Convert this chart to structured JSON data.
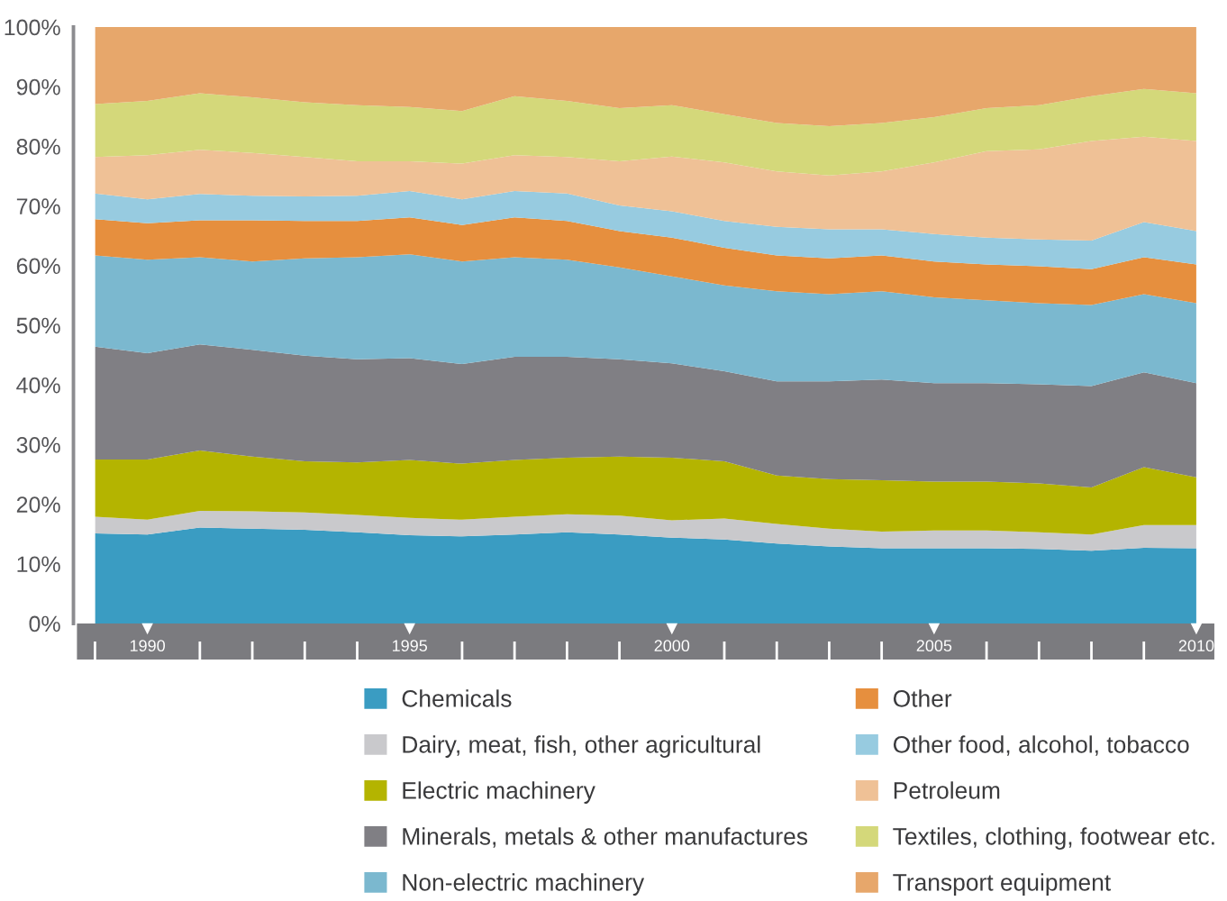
{
  "chart_data": {
    "type": "area",
    "stacked": true,
    "x": [
      1989,
      1990,
      1991,
      1992,
      1993,
      1994,
      1995,
      1996,
      1997,
      1998,
      1999,
      2000,
      2001,
      2002,
      2003,
      2004,
      2005,
      2006,
      2007,
      2008,
      2009,
      2010
    ],
    "xlim": [
      1989,
      2010
    ],
    "xticks": [
      {
        "value": 1989,
        "label": null
      },
      1990,
      {
        "value": 1991,
        "label": null
      },
      {
        "value": 1992,
        "label": null
      },
      {
        "value": 1993,
        "label": null
      },
      {
        "value": 1994,
        "label": null
      },
      1995,
      {
        "value": 1996,
        "label": null
      },
      {
        "value": 1997,
        "label": null
      },
      {
        "value": 1998,
        "label": null
      },
      {
        "value": 1999,
        "label": null
      },
      2000,
      {
        "value": 2001,
        "label": null
      },
      {
        "value": 2002,
        "label": null
      },
      {
        "value": 2003,
        "label": null
      },
      {
        "value": 2004,
        "label": null
      },
      2005,
      {
        "value": 2006,
        "label": null
      },
      {
        "value": 2007,
        "label": null
      },
      {
        "value": 2008,
        "label": null
      },
      {
        "value": 2009,
        "label": null
      },
      2010
    ],
    "ylim": [
      0,
      100
    ],
    "yticks": [
      {
        "value": 0,
        "label": "0%"
      },
      {
        "value": 10,
        "label": "10%"
      },
      {
        "value": 20,
        "label": "20%"
      },
      {
        "value": 30,
        "label": "30%"
      },
      {
        "value": 40,
        "label": "40%"
      },
      {
        "value": 50,
        "label": "50%"
      },
      {
        "value": 60,
        "label": "60%"
      },
      {
        "value": 70,
        "label": "70%"
      },
      {
        "value": 80,
        "label": "80%"
      },
      {
        "value": 90,
        "label": "90%"
      },
      {
        "value": 100,
        "label": "100%"
      }
    ],
    "legend": "bottom",
    "series": [
      {
        "name": "Chemicals",
        "color": "#3a9cc2",
        "values": [
          15.1,
          14.9,
          16.1,
          15.9,
          15.7,
          15.3,
          14.8,
          14.6,
          14.9,
          15.3,
          14.9,
          14.4,
          14.1,
          13.4,
          12.9,
          12.6,
          12.6,
          12.6,
          12.5,
          12.2,
          12.7,
          12.6
        ]
      },
      {
        "name": "Dairy, meat, fish, other agricultural",
        "color": "#c9c9cc",
        "values": [
          2.8,
          2.5,
          2.8,
          2.9,
          2.9,
          2.9,
          2.9,
          2.8,
          3.0,
          3.0,
          3.2,
          2.9,
          3.5,
          3.3,
          3.0,
          2.8,
          3.0,
          3.0,
          2.8,
          2.7,
          3.8,
          3.9
        ]
      },
      {
        "name": "Electric machinery",
        "color": "#b4b400",
        "values": [
          9.6,
          10.1,
          10.1,
          9.2,
          8.6,
          8.8,
          9.7,
          9.4,
          9.5,
          9.5,
          9.9,
          10.5,
          9.6,
          8.1,
          8.3,
          8.6,
          8.2,
          8.2,
          8.2,
          7.9,
          9.7,
          8.0
        ]
      },
      {
        "name": "Minerals, metals & other manufactures",
        "color": "#807f84",
        "values": [
          18.9,
          17.8,
          17.8,
          17.9,
          17.7,
          17.3,
          17.1,
          16.7,
          17.3,
          16.9,
          16.3,
          15.8,
          15.1,
          15.8,
          16.4,
          16.9,
          16.5,
          16.5,
          16.6,
          17.0,
          15.9,
          15.8
        ]
      },
      {
        "name": "Non-electric machinery",
        "color": "#7bb8cf",
        "values": [
          15.3,
          15.7,
          14.6,
          14.8,
          16.3,
          17.1,
          17.4,
          17.2,
          16.7,
          16.3,
          15.4,
          14.6,
          14.4,
          15.1,
          14.6,
          14.8,
          14.4,
          13.9,
          13.6,
          13.6,
          13.1,
          13.4
        ]
      },
      {
        "name": "Other",
        "color": "#e68f3e",
        "values": [
          6.1,
          6.1,
          6.2,
          6.9,
          6.3,
          6.1,
          6.2,
          6.1,
          6.7,
          6.5,
          6.1,
          6.5,
          6.3,
          6.0,
          6.0,
          6.0,
          6.0,
          6.0,
          6.2,
          6.0,
          6.2,
          6.5
        ]
      },
      {
        "name": "Other food, alcohol, tobacco",
        "color": "#97cbe0",
        "values": [
          4.3,
          4.0,
          4.4,
          4.1,
          4.1,
          4.2,
          4.4,
          4.3,
          4.4,
          4.6,
          4.3,
          4.4,
          4.5,
          4.8,
          4.9,
          4.4,
          4.6,
          4.5,
          4.5,
          4.8,
          5.9,
          5.6
        ]
      },
      {
        "name": "Petroleum",
        "color": "#efc196",
        "values": [
          6.1,
          7.4,
          7.4,
          7.2,
          6.6,
          5.8,
          5.0,
          6.0,
          6.0,
          6.1,
          7.4,
          9.2,
          9.8,
          9.3,
          9.0,
          9.7,
          12.0,
          14.5,
          15.1,
          16.7,
          14.3,
          15.1
        ]
      },
      {
        "name": "Textiles, clothing, footwear etc.",
        "color": "#d4d87a",
        "values": [
          8.9,
          9.1,
          9.5,
          9.3,
          9.2,
          9.4,
          9.1,
          8.8,
          9.9,
          9.4,
          8.9,
          8.6,
          8.1,
          8.1,
          8.3,
          8.1,
          7.6,
          7.2,
          7.4,
          7.5,
          8.0,
          8.0
        ]
      },
      {
        "name": "Transport equipment",
        "color": "#e7a76b",
        "values": [
          12.9,
          12.4,
          11.1,
          11.8,
          12.6,
          13.1,
          13.4,
          14.1,
          11.6,
          12.4,
          13.6,
          13.1,
          14.6,
          16.1,
          16.6,
          16.1,
          15.1,
          13.6,
          13.1,
          11.6,
          10.4,
          11.1
        ]
      }
    ]
  }
}
